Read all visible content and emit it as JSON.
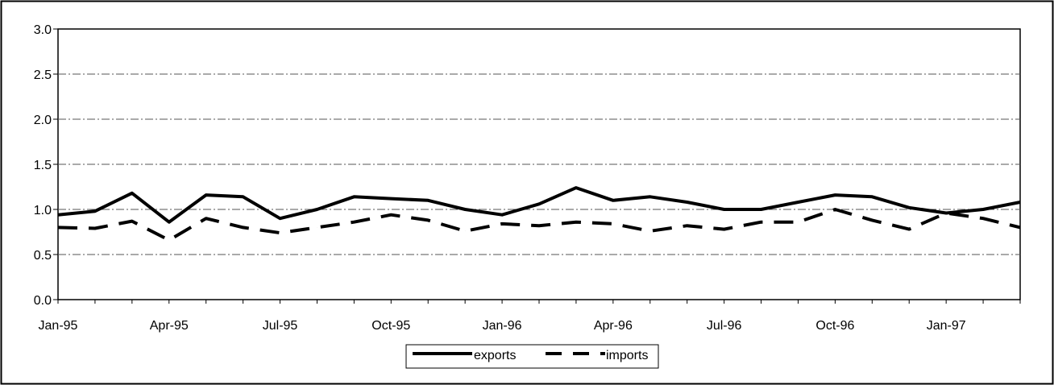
{
  "chart_data": {
    "type": "line",
    "title": "",
    "xlabel": "",
    "ylabel": "",
    "x": [
      "Jan-95",
      "Feb-95",
      "Mar-95",
      "Apr-95",
      "May-95",
      "Jun-95",
      "Jul-95",
      "Aug-95",
      "Sep-95",
      "Oct-95",
      "Nov-95",
      "Dec-95",
      "Jan-96",
      "Feb-96",
      "Mar-96",
      "Apr-96",
      "May-96",
      "Jun-96",
      "Jul-96",
      "Aug-96",
      "Sep-96",
      "Oct-96",
      "Nov-96",
      "Dec-96",
      "Jan-97",
      "Feb-97",
      "Mar-97"
    ],
    "x_tick_labels": [
      "Jan-95",
      "Apr-95",
      "Jul-95",
      "Oct-95",
      "Jan-96",
      "Apr-96",
      "Jul-96",
      "Oct-96",
      "Jan-97"
    ],
    "y_tick_labels": [
      "0.0",
      "0.5",
      "1.0",
      "1.5",
      "2.0",
      "2.5",
      "3.0"
    ],
    "ylim": [
      0,
      3
    ],
    "grid": true,
    "legend_position": "bottom",
    "series": [
      {
        "name": "exports",
        "style": "solid",
        "color": "#000000",
        "values": [
          0.94,
          0.98,
          1.18,
          0.86,
          1.16,
          1.14,
          0.9,
          1.0,
          1.14,
          1.12,
          1.1,
          1.0,
          0.94,
          1.06,
          1.24,
          1.1,
          1.14,
          1.08,
          1.0,
          1.0,
          1.08,
          1.16,
          1.14,
          1.02,
          0.96,
          1.0,
          1.08
        ]
      },
      {
        "name": "imports",
        "style": "dashed",
        "color": "#000000",
        "values": [
          0.8,
          0.79,
          0.87,
          0.66,
          0.9,
          0.8,
          0.74,
          0.8,
          0.86,
          0.94,
          0.88,
          0.76,
          0.84,
          0.82,
          0.86,
          0.84,
          0.76,
          0.82,
          0.78,
          0.86,
          0.86,
          1.0,
          0.88,
          0.78,
          0.96,
          0.9,
          0.8
        ]
      }
    ]
  }
}
